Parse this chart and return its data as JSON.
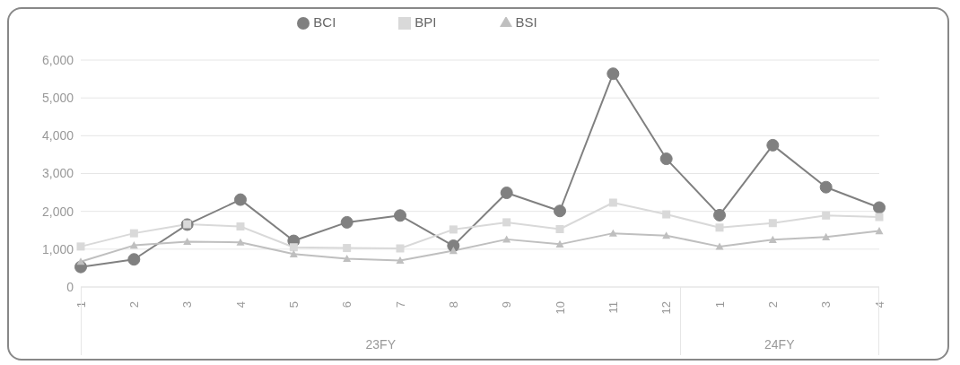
{
  "chart_data": {
    "type": "line",
    "categories": [
      "1",
      "2",
      "3",
      "4",
      "5",
      "6",
      "7",
      "8",
      "9",
      "10",
      "11",
      "12",
      "1",
      "2",
      "3",
      "4"
    ],
    "series": [
      {
        "name": "BCI",
        "color": "#808080",
        "marker": "circle",
        "values": [
          530,
          730,
          1650,
          2310,
          1220,
          1710,
          1890,
          1090,
          2490,
          2010,
          5640,
          3390,
          1900,
          3750,
          2640,
          2100
        ]
      },
      {
        "name": "BPI",
        "color": "#d9d9d9",
        "marker": "square",
        "values": [
          1070,
          1420,
          1660,
          1600,
          1050,
          1030,
          1020,
          1520,
          1710,
          1530,
          2230,
          1920,
          1570,
          1690,
          1890,
          1850
        ]
      },
      {
        "name": "BSI",
        "color": "#bfbfbf",
        "marker": "triangle",
        "values": [
          670,
          1100,
          1200,
          1180,
          870,
          750,
          700,
          960,
          1260,
          1130,
          1420,
          1360,
          1070,
          1250,
          1320,
          1480
        ]
      }
    ],
    "ylim": [
      0,
      6000
    ],
    "yticks": [
      0,
      {
        "value": 1000,
        "label": "1,000"
      },
      {
        "value": 2000,
        "label": "2,000"
      },
      {
        "value": 3000,
        "label": "3,000"
      },
      {
        "value": 4000,
        "label": "4,000"
      },
      {
        "value": 5000,
        "label": "5,000"
      },
      {
        "value": 6000,
        "label": "6,000"
      }
    ],
    "annotations": [
      "23FY",
      "24FY"
    ],
    "grid": "y",
    "legend": "top",
    "line_style": "solid"
  }
}
